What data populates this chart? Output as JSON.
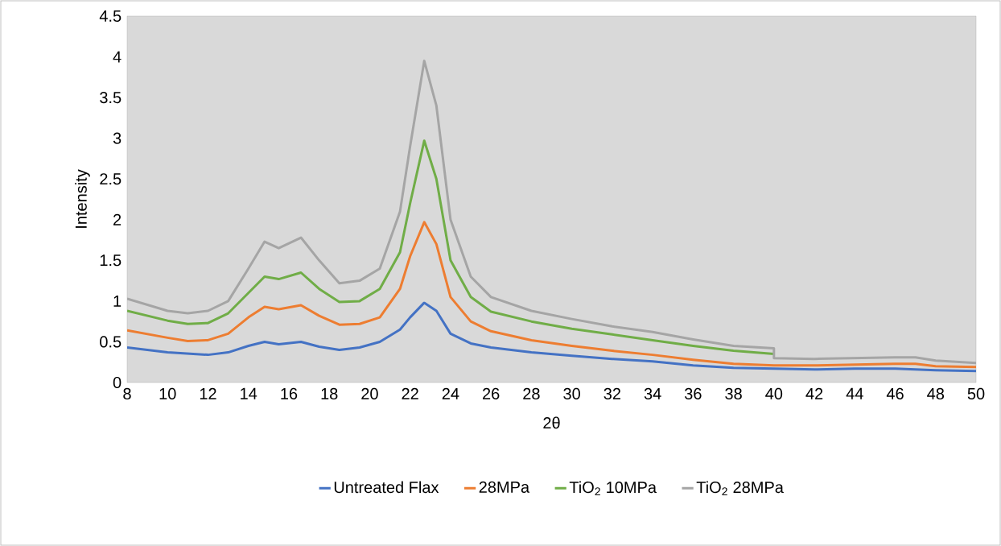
{
  "chart_data": {
    "type": "line",
    "xlabel": "2θ",
    "ylabel": "Intensity",
    "xlim": [
      8,
      50
    ],
    "ylim": [
      0,
      4.5
    ],
    "xticks": [
      8,
      10,
      12,
      14,
      16,
      18,
      20,
      22,
      24,
      26,
      28,
      30,
      32,
      34,
      36,
      38,
      40,
      42,
      44,
      46,
      48,
      50
    ],
    "yticks": [
      0,
      0.5,
      1,
      1.5,
      2,
      2.5,
      3,
      3.5,
      4,
      4.5
    ],
    "grid": false,
    "legend": "bottom",
    "series": [
      {
        "name": "Untreated Flax",
        "color": "#4472c4",
        "x": [
          8,
          10,
          12,
          13,
          14,
          14.8,
          15.5,
          16.6,
          17.5,
          18.5,
          19.5,
          20.5,
          21.5,
          22,
          22.7,
          23.3,
          24,
          25,
          26,
          28,
          30,
          32,
          34,
          36,
          38,
          40,
          42,
          44,
          46,
          48,
          50
        ],
        "values": [
          0.43,
          0.37,
          0.34,
          0.37,
          0.45,
          0.5,
          0.47,
          0.5,
          0.44,
          0.4,
          0.43,
          0.5,
          0.65,
          0.8,
          0.98,
          0.88,
          0.6,
          0.48,
          0.43,
          0.37,
          0.33,
          0.29,
          0.26,
          0.21,
          0.18,
          0.17,
          0.16,
          0.17,
          0.17,
          0.15,
          0.14
        ]
      },
      {
        "name": "28MPa",
        "color": "#ed7d31",
        "x": [
          8,
          10,
          11,
          12,
          13,
          14,
          14.8,
          15.5,
          16.6,
          17.5,
          18.5,
          19.5,
          20.5,
          21.5,
          22,
          22.7,
          23.3,
          24,
          25,
          26,
          28,
          30,
          32,
          34,
          36,
          38,
          40,
          42,
          44,
          46,
          47,
          48,
          50
        ],
        "values": [
          0.64,
          0.55,
          0.51,
          0.52,
          0.6,
          0.8,
          0.93,
          0.9,
          0.95,
          0.82,
          0.71,
          0.72,
          0.8,
          1.15,
          1.55,
          1.97,
          1.7,
          1.05,
          0.75,
          0.63,
          0.52,
          0.45,
          0.39,
          0.34,
          0.28,
          0.23,
          0.21,
          0.21,
          0.22,
          0.23,
          0.23,
          0.2,
          0.19
        ]
      },
      {
        "name": "TiO$_{2}$ 10MPa",
        "color": "#70ad47",
        "x": [
          8,
          10,
          11,
          12,
          13,
          14,
          14.8,
          15.5,
          16.6,
          17.5,
          18.5,
          19.5,
          20.5,
          21.5,
          22,
          22.7,
          23.3,
          24,
          25,
          26,
          28,
          30,
          32,
          34,
          36,
          38,
          40
        ],
        "values": [
          0.88,
          0.76,
          0.72,
          0.73,
          0.85,
          1.1,
          1.3,
          1.27,
          1.35,
          1.15,
          0.99,
          1.0,
          1.15,
          1.6,
          2.2,
          2.97,
          2.5,
          1.5,
          1.05,
          0.87,
          0.75,
          0.66,
          0.59,
          0.52,
          0.45,
          0.39,
          0.35
        ]
      },
      {
        "name": "TiO$_{2}$ 28MPa",
        "color": "#a5a5a5",
        "x": [
          8,
          10,
          11,
          12,
          13,
          14,
          14.8,
          15.5,
          16.6,
          17.5,
          18.5,
          19.5,
          20.5,
          21.5,
          22,
          22.7,
          23.3,
          24,
          25,
          26,
          28,
          30,
          32,
          34,
          36,
          38,
          40,
          40,
          42,
          44,
          46,
          47,
          48,
          50
        ],
        "values": [
          1.03,
          0.88,
          0.85,
          0.88,
          1.0,
          1.4,
          1.73,
          1.65,
          1.78,
          1.5,
          1.22,
          1.25,
          1.4,
          2.1,
          2.9,
          3.95,
          3.4,
          2.0,
          1.3,
          1.05,
          0.88,
          0.78,
          0.69,
          0.62,
          0.53,
          0.45,
          0.42,
          0.3,
          0.29,
          0.3,
          0.31,
          0.31,
          0.27,
          0.24
        ]
      }
    ]
  }
}
